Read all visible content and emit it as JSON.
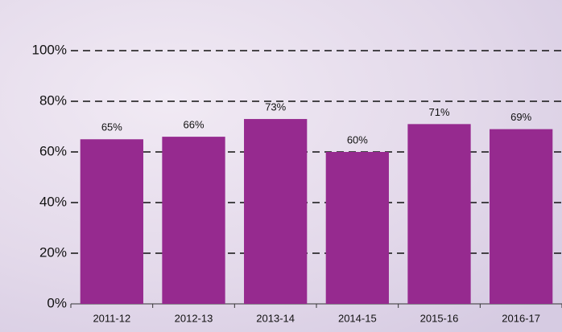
{
  "chart_data": {
    "type": "bar",
    "categories": [
      "2011-12",
      "2012-13",
      "2013-14",
      "2014-15",
      "2015-16",
      "2016-17"
    ],
    "values": [
      65,
      66,
      73,
      60,
      71,
      69
    ],
    "value_labels": [
      "65%",
      "66%",
      "73%",
      "60%",
      "71%",
      "69%"
    ],
    "color": "#962a8f",
    "ylim": [
      0,
      100
    ],
    "yticks": [
      {
        "value": 0,
        "label": "0%"
      },
      {
        "value": 20,
        "label": "20%"
      },
      {
        "value": 40,
        "label": "40%"
      },
      {
        "value": 60,
        "label": "60%"
      },
      {
        "value": 80,
        "label": "80%"
      },
      {
        "value": 100,
        "label": "100%"
      }
    ],
    "grid": true
  }
}
